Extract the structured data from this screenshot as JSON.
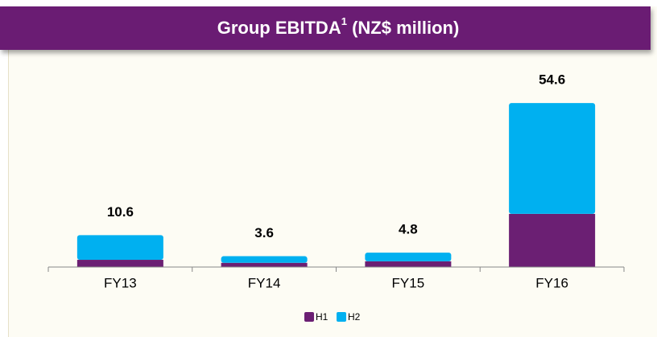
{
  "chart_data": {
    "type": "stacked_bar",
    "title": "Group EBITDA",
    "title_superscript": "1",
    "title_suffix": " (NZ$ million)",
    "categories": [
      "FY13",
      "FY14",
      "FY15",
      "FY16"
    ],
    "series": [
      {
        "name": "H1",
        "color": "#6b1f73",
        "values": [
          2.4,
          1.4,
          1.9,
          17.7
        ]
      },
      {
        "name": "H2",
        "color": "#00b0f0",
        "values": [
          8.2,
          2.2,
          2.9,
          36.9
        ]
      }
    ],
    "totals": [
      10.6,
      3.6,
      4.8,
      54.6
    ],
    "ylim": [
      0,
      60
    ],
    "legend": "bottom"
  }
}
